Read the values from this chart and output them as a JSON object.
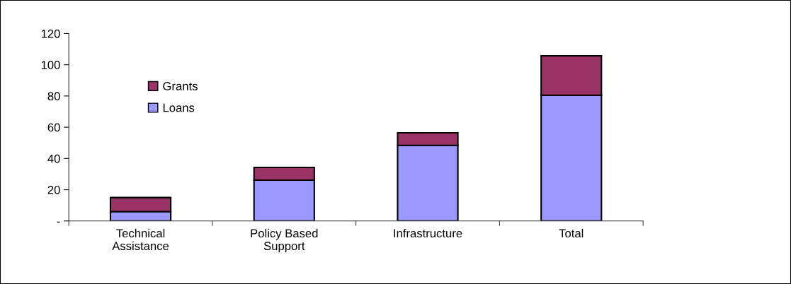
{
  "chart_data": {
    "type": "bar",
    "stacked": true,
    "categories": [
      "Technical\nAssistance",
      "Policy Based\nSupport",
      "Infrastructure",
      "Total"
    ],
    "series": [
      {
        "name": "Loans",
        "color": "#9999ff",
        "values": [
          6.0,
          26.1,
          48.4,
          80.5
        ]
      },
      {
        "name": "Grants",
        "color": "#993366",
        "values": [
          9.0,
          8.2,
          8.0,
          25.2
        ]
      }
    ],
    "ylim": [
      0,
      120
    ],
    "yticks": [
      {
        "value": 0,
        "label": "-"
      },
      20,
      40,
      60,
      80,
      100,
      120
    ],
    "grid": false,
    "legend": "top left"
  }
}
